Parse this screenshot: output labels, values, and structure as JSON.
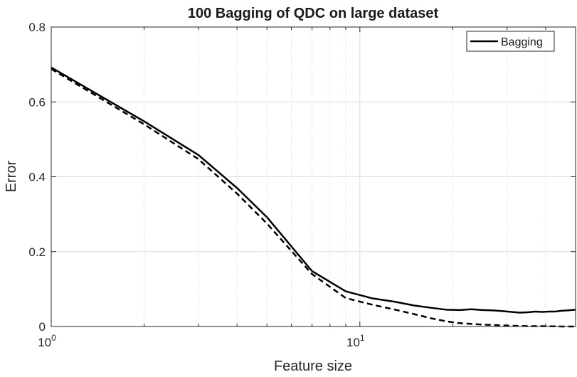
{
  "chart_data": {
    "type": "line",
    "title": "100 Bagging of QDC on large dataset",
    "xlabel": "Feature size",
    "ylabel": "Error",
    "xscale": "log",
    "xlim": [
      1,
      50
    ],
    "ylim": [
      0,
      0.8
    ],
    "grid": true,
    "legend_position": "top-right",
    "x_ticks": [
      {
        "value": 1,
        "base": "10",
        "exp": "0"
      },
      {
        "value": 10,
        "base": "10",
        "exp": "1"
      }
    ],
    "y_ticks": [
      {
        "value": 0,
        "label": "0"
      },
      {
        "value": 0.2,
        "label": "0.2"
      },
      {
        "value": 0.4,
        "label": "0.4"
      },
      {
        "value": 0.6,
        "label": "0.6"
      },
      {
        "value": 0.8,
        "label": "0.8"
      }
    ],
    "series": [
      {
        "name": "Bagging",
        "style": "solid",
        "color": "#000000",
        "x": [
          1,
          2,
          3,
          4,
          5,
          7,
          9,
          11,
          13,
          15,
          17,
          19,
          21,
          23,
          25,
          27,
          29,
          31,
          33,
          35,
          37,
          39,
          41,
          43,
          45,
          47,
          50
        ],
        "y": [
          0.692,
          0.548,
          0.458,
          0.37,
          0.292,
          0.148,
          0.094,
          0.075,
          0.066,
          0.056,
          0.05,
          0.045,
          0.044,
          0.046,
          0.044,
          0.043,
          0.041,
          0.039,
          0.037,
          0.038,
          0.04,
          0.039,
          0.04,
          0.04,
          0.042,
          0.043,
          0.045
        ]
      },
      {
        "style": "dashed",
        "color": "#000000",
        "x": [
          1,
          2,
          3,
          4,
          5,
          7,
          9,
          11,
          13,
          15,
          17,
          19,
          21,
          23,
          25,
          27,
          29,
          31,
          33,
          35,
          37,
          39,
          41,
          43,
          45,
          47,
          50
        ],
        "y": [
          0.688,
          0.54,
          0.447,
          0.355,
          0.275,
          0.14,
          0.076,
          0.058,
          0.045,
          0.033,
          0.022,
          0.014,
          0.009,
          0.007,
          0.005,
          0.004,
          0.003,
          0.002,
          0.0015,
          0.001,
          0.001,
          0.001,
          0.0005,
          0.0005,
          0.0,
          0.0,
          0.0
        ]
      }
    ]
  }
}
